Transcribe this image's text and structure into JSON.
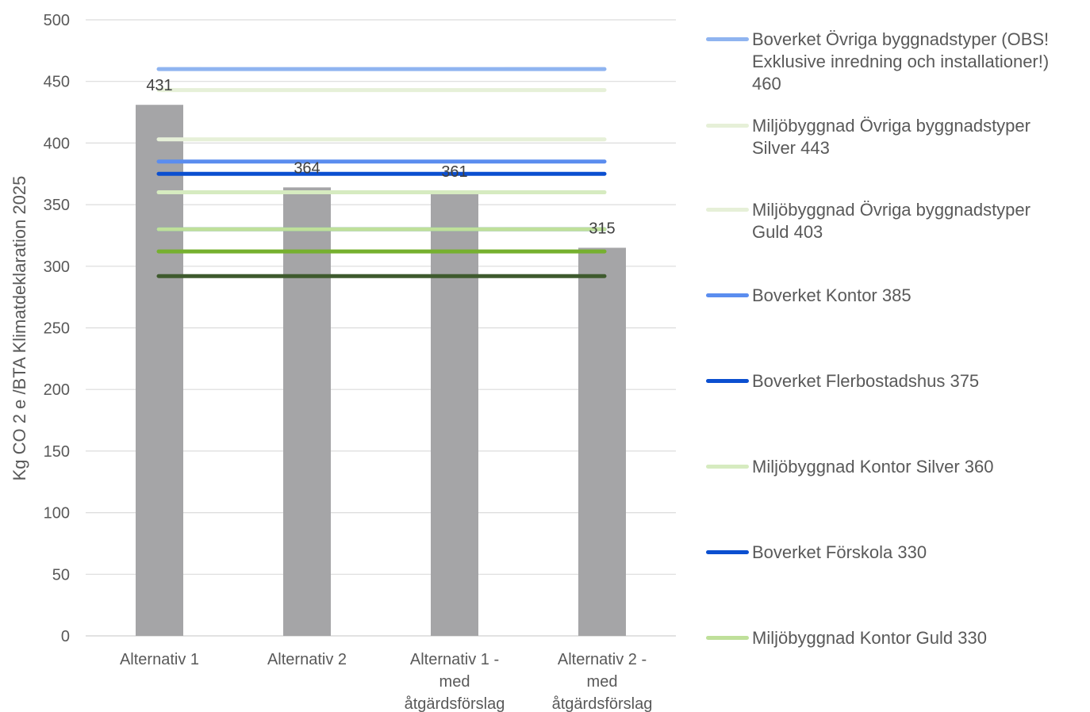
{
  "chart_data": {
    "type": "bar",
    "ylabel": "Kg CO 2 e /BTA Klimatdeklaration 2025",
    "ylim": [
      0,
      500
    ],
    "yticks": [
      0,
      50,
      100,
      150,
      200,
      250,
      300,
      350,
      400,
      450,
      500
    ],
    "grid": true,
    "legend_position": "right",
    "categories": [
      [
        "Alternativ 1"
      ],
      [
        "Alternativ 2"
      ],
      [
        "Alternativ 1 -",
        "med",
        "åtgärdsförslag"
      ],
      [
        "Alternativ 2 -",
        "med",
        "åtgärdsförslag"
      ]
    ],
    "bar_values": [
      431,
      364,
      361,
      315
    ],
    "bar_labels": [
      "431",
      "364",
      "361",
      "315"
    ],
    "bar_color": "#a5a5a7",
    "reference_lines": [
      {
        "name": "Boverket Övriga byggnadstyper (OBS!\nExklusive inredning och installationer!)\n460",
        "value": 460,
        "color": "#8fb4f0"
      },
      {
        "name": "Miljöbyggnad Övriga byggnadstyper\nSilver 443",
        "value": 443,
        "color": "#e6f0d8"
      },
      {
        "name": "Miljöbyggnad Övriga byggnadstyper\nGuld 403",
        "value": 403,
        "color": "#e6f0d8"
      },
      {
        "name": "Boverket Kontor 385",
        "value": 385,
        "color": "#5b8def"
      },
      {
        "name": "Boverket Flerbostadshus 375",
        "value": 375,
        "color": "#0b4fd0"
      },
      {
        "name": "Miljöbyggnad Kontor Silver 360",
        "value": 360,
        "color": "#d6ebc0"
      },
      {
        "name": "Boverket Förskola 330",
        "value": 330,
        "color": "#0b4fd0"
      },
      {
        "name": "Miljöbyggnad Kontor Guld 330",
        "value": 330,
        "color": "#bfe09a"
      },
      {
        "name": "",
        "value": 312,
        "color": "#76b02f"
      },
      {
        "name": "",
        "value": 292,
        "color": "#3e5a2e"
      }
    ]
  }
}
